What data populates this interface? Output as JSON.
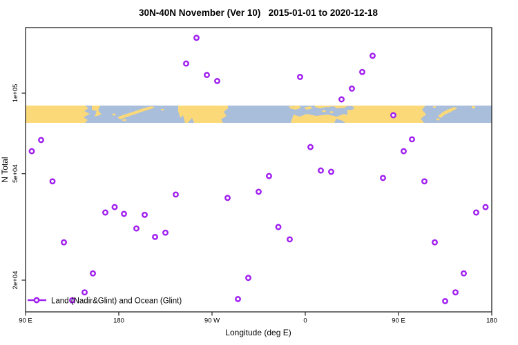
{
  "title": "30N-40N November (Ver 10)   2015-01-01 to 2020-12-18",
  "legend": {
    "label": "Land (Nadir&Glint) and Ocean (Glint)"
  },
  "colors": {
    "marker": "#A020F0",
    "land": "#FCD978",
    "ocean": "#A9BEDB",
    "axis": "#222222"
  },
  "chart_data": {
    "type": "scatter",
    "title": "30N-40N November (Ver 10)   2015-01-01 to 2020-12-18",
    "xlabel": "Longitude (deg E)",
    "ylabel": "N Total",
    "legend_entries": [
      "Land (Nadir&Glint) and Ocean (Glint)"
    ],
    "legend_position": "bottom-left",
    "grid": false,
    "x_axis": {
      "note": "longitude wraps eastward starting at 90E; axis coordinate runs 90..540 deg",
      "range": [
        90,
        540
      ],
      "ticks": [
        {
          "deg": 90,
          "label": "90 E"
        },
        {
          "deg": 180,
          "label": "180"
        },
        {
          "deg": 270,
          "label": "90 W"
        },
        {
          "deg": 360,
          "label": "0"
        },
        {
          "deg": 450,
          "label": "90 E"
        },
        {
          "deg": 540,
          "label": "180"
        }
      ]
    },
    "y_axis": {
      "scale": "log",
      "range": [
        15200,
        176000
      ],
      "ticks": [
        {
          "value": 20000,
          "label": "2e+04"
        },
        {
          "value": 50000,
          "label": "5e+04"
        },
        {
          "value": 100000,
          "label": "1e+05"
        }
      ]
    },
    "map_band": {
      "description": "world coastline strip (30N-40N), ocean blue / land sand",
      "value_range": [
        77500,
        90000
      ]
    },
    "points": [
      [
        255,
        161000
      ],
      [
        245,
        129000
      ],
      [
        265,
        117000
      ],
      [
        275,
        111000
      ],
      [
        425,
        138000
      ],
      [
        415,
        120000
      ],
      [
        355,
        115000
      ],
      [
        405,
        104000
      ],
      [
        395,
        94800
      ],
      [
        445,
        82700
      ],
      [
        463,
        67200
      ],
      [
        105,
        66800
      ],
      [
        96,
        60700
      ],
      [
        116,
        46800
      ],
      [
        235,
        41800
      ],
      [
        285,
        40600
      ],
      [
        315,
        42800
      ],
      [
        176,
        37500
      ],
      [
        167,
        35800
      ],
      [
        185,
        35400
      ],
      [
        205,
        35100
      ],
      [
        197,
        31200
      ],
      [
        365,
        62900
      ],
      [
        455,
        60700
      ],
      [
        375,
        51400
      ],
      [
        385,
        50800
      ],
      [
        325,
        49000
      ],
      [
        435,
        48200
      ],
      [
        475,
        46800
      ],
      [
        525,
        35800
      ],
      [
        534,
        37500
      ],
      [
        334,
        31600
      ],
      [
        127,
        27700
      ],
      [
        215,
        29000
      ],
      [
        225,
        30100
      ],
      [
        155,
        21200
      ],
      [
        305,
        20400
      ],
      [
        147,
        18000
      ],
      [
        135,
        16800
      ],
      [
        295,
        17000
      ],
      [
        345,
        28400
      ],
      [
        485,
        27700
      ],
      [
        513,
        21200
      ],
      [
        505,
        18000
      ],
      [
        495,
        16700
      ]
    ]
  }
}
